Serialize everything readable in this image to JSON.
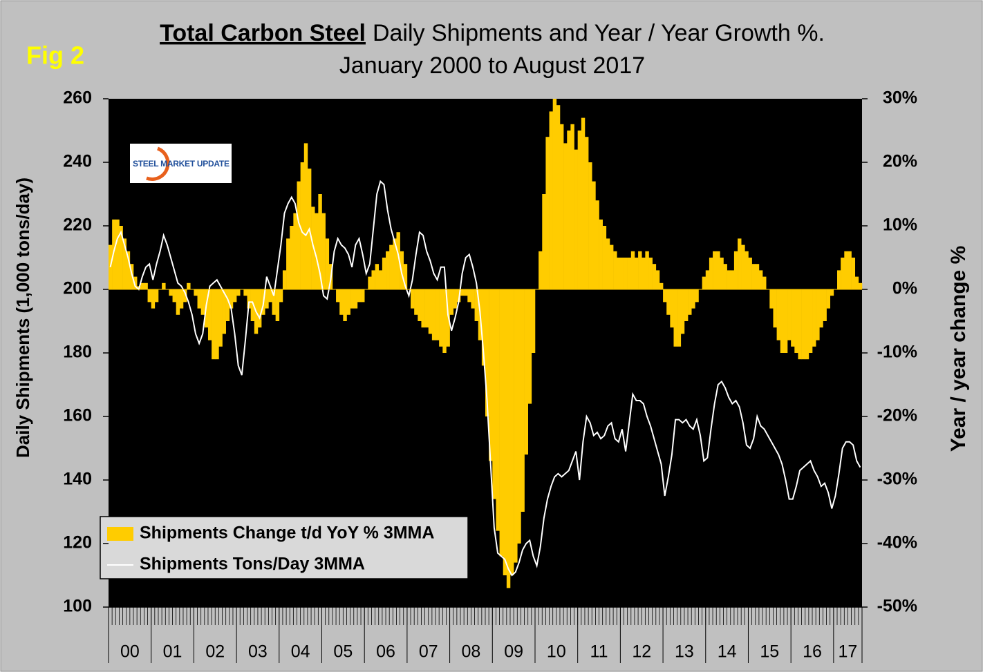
{
  "chart_data": {
    "type": "bar-line",
    "figure_label": "Fig 2",
    "title_emphasis": "Total Carbon Steel",
    "title": "Daily Shipments and Year / Year Growth %.",
    "subtitle": "January 2000 to August 2017",
    "logo_text": "STEEL MARKET UPDATE",
    "y_label": "Daily Shipments (1,000 tons/day)",
    "y2_label": "Year / year change %",
    "ylim": [
      100,
      260
    ],
    "yticks": [
      100,
      120,
      140,
      160,
      180,
      200,
      220,
      240,
      260
    ],
    "y2lim": [
      -50,
      30
    ],
    "y2ticks": [
      {
        "value": -50,
        "label": "-50%"
      },
      {
        "value": -40,
        "label": "-40%"
      },
      {
        "value": -30,
        "label": "-30%"
      },
      {
        "value": -20,
        "label": "-20%"
      },
      {
        "value": -10,
        "label": "-10%"
      },
      {
        "value": 0,
        "label": "0%"
      },
      {
        "value": 10,
        "label": "10%"
      },
      {
        "value": 20,
        "label": "20%"
      },
      {
        "value": 30,
        "label": "30%"
      }
    ],
    "legend": "lower left",
    "categories": [
      "00",
      null,
      null,
      null,
      null,
      null,
      null,
      null,
      null,
      null,
      null,
      null,
      "01",
      null,
      null,
      null,
      null,
      null,
      null,
      null,
      null,
      null,
      null,
      null,
      "02",
      null,
      null,
      null,
      null,
      null,
      null,
      null,
      null,
      null,
      null,
      null,
      "03",
      null,
      null,
      null,
      null,
      null,
      null,
      null,
      null,
      null,
      null,
      null,
      "04",
      null,
      null,
      null,
      null,
      null,
      null,
      null,
      null,
      null,
      null,
      null,
      "05",
      null,
      null,
      null,
      null,
      null,
      null,
      null,
      null,
      null,
      null,
      null,
      "06",
      null,
      null,
      null,
      null,
      null,
      null,
      null,
      null,
      null,
      null,
      null,
      "07",
      null,
      null,
      null,
      null,
      null,
      null,
      null,
      null,
      null,
      null,
      null,
      "08",
      null,
      null,
      null,
      null,
      null,
      null,
      null,
      null,
      null,
      null,
      null,
      "09",
      null,
      null,
      null,
      null,
      null,
      null,
      null,
      null,
      null,
      null,
      null,
      "10",
      null,
      null,
      null,
      null,
      null,
      null,
      null,
      null,
      null,
      null,
      null,
      "11",
      null,
      null,
      null,
      null,
      null,
      null,
      null,
      null,
      null,
      null,
      null,
      "12",
      null,
      null,
      null,
      null,
      null,
      null,
      null,
      null,
      null,
      null,
      null,
      "13",
      null,
      null,
      null,
      null,
      null,
      null,
      null,
      null,
      null,
      null,
      null,
      "14",
      null,
      null,
      null,
      null,
      null,
      null,
      null,
      null,
      null,
      null,
      null,
      "15",
      null,
      null,
      null,
      null,
      null,
      null,
      null,
      null,
      null,
      null,
      null,
      "16",
      null,
      null,
      null,
      null,
      null,
      null,
      null,
      null,
      null,
      null,
      null,
      "17",
      null,
      null,
      null,
      null,
      null,
      null,
      null
    ],
    "series": [
      {
        "name": "Shipments Change t/d YoY % 3MMA",
        "type": "bar",
        "axis": "y2",
        "color": "#ffcc00",
        "values": [
          7,
          11,
          11,
          10,
          8,
          6,
          4,
          2,
          0.5,
          1,
          1,
          -2,
          -3,
          -2,
          0,
          1,
          0,
          -1,
          -2,
          -4,
          -3,
          -2,
          1,
          0,
          -1,
          -3,
          -4,
          -6,
          -8,
          -11,
          -11,
          -9,
          -7,
          -5,
          -3,
          -2,
          -1,
          0,
          -1,
          -3,
          -5,
          -7,
          -6,
          -4,
          -3,
          -2,
          -4,
          -5,
          -2,
          3,
          8,
          10,
          12,
          17,
          20,
          23,
          19,
          13,
          12,
          15,
          12,
          8,
          4,
          0,
          -2,
          -4,
          -5,
          -4,
          -3,
          -3,
          -2,
          -2,
          0,
          2,
          3,
          4,
          3,
          5,
          6,
          7,
          8,
          9,
          6,
          4,
          0,
          -3,
          -4,
          -5,
          -6,
          -6,
          -7,
          -8,
          -8,
          -9,
          -10,
          -9,
          -4,
          -3,
          -2,
          -1,
          -1,
          -2,
          -3,
          -5,
          -8,
          -12,
          -20,
          -27,
          -33,
          -38,
          -42,
          -45,
          -47,
          -45,
          -43,
          -40,
          -35,
          -26,
          -18,
          -10,
          0,
          6,
          15,
          24,
          28,
          30,
          29,
          26,
          23,
          25,
          26,
          22,
          25,
          27,
          24,
          20,
          17,
          14,
          11,
          10,
          8,
          7,
          6,
          5,
          5,
          5,
          5,
          6,
          5,
          6,
          5,
          6,
          5,
          4,
          3,
          1,
          -2,
          -4,
          -6,
          -9,
          -9,
          -7,
          -5,
          -4,
          -3,
          -2,
          0,
          2,
          3,
          5,
          6,
          6,
          5,
          4,
          3,
          3,
          6,
          8,
          7,
          6,
          5,
          4,
          4,
          3,
          2,
          0,
          -3,
          -6,
          -8,
          -10,
          -10,
          -8,
          -9,
          -10,
          -11,
          -11,
          -11,
          -10,
          -9,
          -8,
          -6,
          -5,
          -3,
          -1,
          0,
          3,
          5,
          6,
          6,
          5,
          2,
          1
        ]
      },
      {
        "name": "Shipments Tons/Day 3MMA",
        "type": "line",
        "axis": "y",
        "color": "#ffffff",
        "values": [
          207,
          212,
          216,
          218,
          214,
          210,
          205,
          201,
          200,
          204,
          207,
          208,
          203,
          208,
          212,
          217,
          214,
          210,
          206,
          202,
          201,
          199,
          196,
          192,
          186,
          183,
          186,
          195,
          201,
          202,
          203,
          201,
          199,
          197,
          194,
          186,
          176,
          173,
          184,
          196,
          196,
          193,
          191,
          195,
          204,
          201,
          198,
          206,
          214,
          224,
          227,
          229,
          227,
          221,
          218,
          217,
          219,
          214,
          210,
          205,
          198,
          197,
          203,
          212,
          216,
          214,
          213,
          211,
          207,
          214,
          216,
          211,
          205,
          208,
          219,
          230,
          234,
          233,
          225,
          219,
          215,
          211,
          205,
          201,
          198,
          203,
          211,
          218,
          217,
          212,
          209,
          205,
          203,
          207,
          207,
          192,
          187,
          191,
          196,
          205,
          210,
          211,
          207,
          202,
          193,
          180,
          165,
          145,
          125,
          117,
          116,
          115,
          112,
          110,
          111,
          114,
          118,
          120,
          121,
          116,
          113,
          119,
          128,
          134,
          138,
          141,
          142,
          141,
          142,
          143,
          146,
          149,
          140,
          152,
          160,
          158,
          154,
          155,
          153,
          154,
          157,
          158,
          153,
          152,
          156,
          149,
          158,
          167,
          165,
          165,
          164,
          160,
          157,
          153,
          149,
          145,
          135,
          141,
          148,
          159,
          159,
          158,
          159,
          157,
          156,
          159,
          154,
          146,
          147,
          156,
          164,
          170,
          171,
          169,
          166,
          164,
          165,
          163,
          158,
          151,
          150,
          153,
          160,
          157,
          156,
          154,
          152,
          150,
          148,
          145,
          140,
          134,
          134,
          138,
          143,
          144,
          145,
          146,
          143,
          141,
          138,
          139,
          136,
          131,
          135,
          142,
          150,
          152,
          152,
          151,
          146,
          144
        ]
      }
    ]
  }
}
